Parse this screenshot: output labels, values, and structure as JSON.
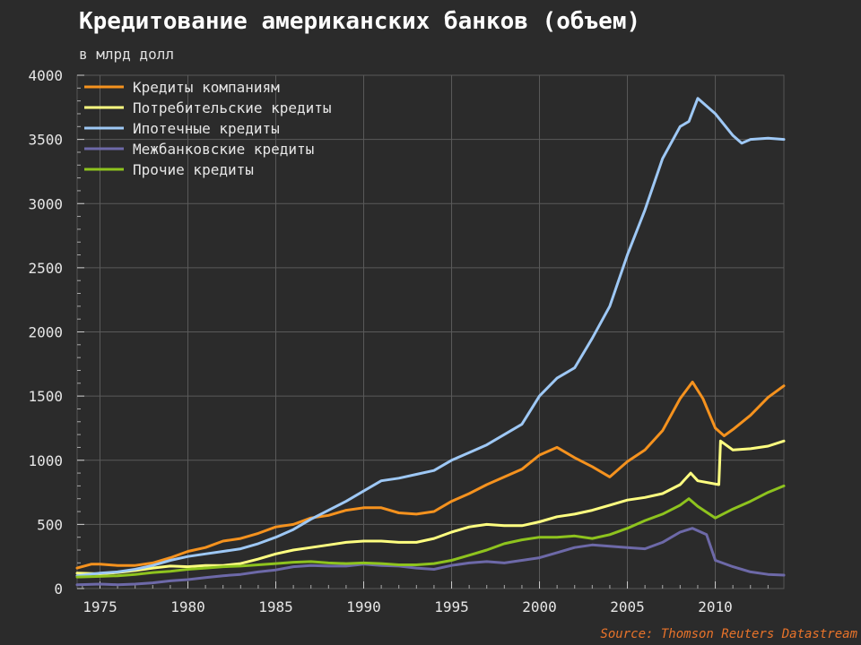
{
  "chart_data": {
    "type": "line",
    "title": "Кредитование американских банков (объем)",
    "subtitle": "в млрд долл",
    "source": "Source: Thomson Reuters Datastream",
    "xlim": [
      1973.7,
      2013.9
    ],
    "ylim": [
      0,
      4000
    ],
    "x_ticks": [
      1975,
      1980,
      1985,
      1990,
      1995,
      2000,
      2005,
      2010
    ],
    "y_ticks": [
      0,
      500,
      1000,
      1500,
      2000,
      2500,
      3000,
      3500,
      4000
    ],
    "grid": true,
    "legend_position": "top-left",
    "series": [
      {
        "name": "Кредиты компаниям",
        "color": "#f5921e",
        "x": [
          1973.7,
          1974.5,
          1975,
          1976,
          1977,
          1978,
          1979,
          1980,
          1981,
          1982,
          1983,
          1984,
          1985,
          1986,
          1987,
          1988,
          1989,
          1990,
          1991,
          1992,
          1993,
          1994,
          1995,
          1996,
          1997,
          1998,
          1999,
          2000,
          2001,
          2002,
          2003,
          2004,
          2005,
          2006,
          2007,
          2008,
          2008.7,
          2009.3,
          2010,
          2010.5,
          2011,
          2012,
          2013,
          2013.9
        ],
        "y": [
          160,
          190,
          190,
          180,
          180,
          200,
          240,
          290,
          320,
          370,
          390,
          430,
          480,
          500,
          550,
          570,
          610,
          630,
          630,
          590,
          580,
          600,
          680,
          740,
          810,
          870,
          930,
          1040,
          1100,
          1020,
          950,
          870,
          990,
          1080,
          1230,
          1480,
          1610,
          1480,
          1250,
          1190,
          1240,
          1350,
          1490,
          1580
        ]
      },
      {
        "name": "Потребительские кредиты",
        "color": "#ffff80",
        "x": [
          1973.7,
          1975,
          1976,
          1977,
          1978,
          1979,
          1980,
          1981,
          1982,
          1983,
          1984,
          1985,
          1986,
          1987,
          1988,
          1989,
          1990,
          1991,
          1992,
          1993,
          1994,
          1995,
          1996,
          1997,
          1998,
          1999,
          2000,
          2001,
          2002,
          2003,
          2004,
          2005,
          2006,
          2007,
          2008,
          2008.6,
          2009,
          2010.2,
          2010.3,
          2011,
          2012,
          2013,
          2013.9
        ],
        "y": [
          120,
          115,
          125,
          140,
          160,
          175,
          170,
          180,
          180,
          195,
          230,
          270,
          300,
          320,
          340,
          360,
          370,
          370,
          360,
          360,
          390,
          440,
          480,
          500,
          490,
          490,
          520,
          560,
          580,
          610,
          650,
          690,
          710,
          740,
          810,
          900,
          840,
          810,
          1150,
          1080,
          1090,
          1110,
          1150
        ]
      },
      {
        "name": "Ипотечные кредиты",
        "color": "#9ec8f5",
        "x": [
          1973.7,
          1975,
          1976,
          1977,
          1978,
          1979,
          1980,
          1981,
          1982,
          1983,
          1984,
          1985,
          1986,
          1987,
          1988,
          1989,
          1990,
          1991,
          1992,
          1993,
          1994,
          1995,
          1996,
          1997,
          1998,
          1999,
          2000,
          2001,
          2002,
          2003,
          2004,
          2005,
          2006,
          2007,
          2008,
          2008.5,
          2009,
          2009.5,
          2010,
          2011,
          2011.5,
          2012,
          2013,
          2013.9
        ],
        "y": [
          100,
          120,
          130,
          150,
          180,
          220,
          250,
          270,
          290,
          310,
          350,
          400,
          460,
          540,
          610,
          680,
          760,
          840,
          860,
          890,
          920,
          1000,
          1060,
          1120,
          1200,
          1280,
          1500,
          1640,
          1720,
          1950,
          2200,
          2600,
          2950,
          3350,
          3600,
          3640,
          3820,
          3760,
          3700,
          3530,
          3470,
          3500,
          3510,
          3500
        ]
      },
      {
        "name": "Межбанковские кредиты",
        "color": "#6d69a8",
        "x": [
          1973.7,
          1975,
          1976,
          1977,
          1978,
          1979,
          1980,
          1981,
          1982,
          1983,
          1984,
          1985,
          1986,
          1987,
          1988,
          1989,
          1990,
          1991,
          1992,
          1993,
          1994,
          1995,
          1996,
          1997,
          1998,
          1999,
          2000,
          2001,
          2002,
          2003,
          2004,
          2005,
          2006,
          2007,
          2008,
          2008.7,
          2009.5,
          2010,
          2011,
          2012,
          2013,
          2013.9
        ],
        "y": [
          30,
          35,
          30,
          35,
          45,
          60,
          70,
          85,
          100,
          110,
          130,
          145,
          170,
          180,
          175,
          175,
          190,
          180,
          175,
          160,
          150,
          180,
          200,
          210,
          200,
          220,
          240,
          280,
          320,
          340,
          330,
          320,
          310,
          360,
          440,
          470,
          420,
          220,
          170,
          130,
          110,
          105
        ]
      },
      {
        "name": "Прочие кредиты",
        "color": "#8ec31e",
        "x": [
          1973.7,
          1975,
          1976,
          1977,
          1978,
          1979,
          1980,
          1981,
          1982,
          1983,
          1984,
          1985,
          1986,
          1987,
          1988,
          1989,
          1990,
          1991,
          1992,
          1993,
          1994,
          1995,
          1996,
          1997,
          1998,
          1999,
          2000,
          2001,
          2002,
          2003,
          2004,
          2005,
          2006,
          2007,
          2008,
          2008.5,
          2009,
          2010,
          2011,
          2012,
          2013,
          2013.9
        ],
        "y": [
          90,
          95,
          100,
          110,
          125,
          135,
          150,
          160,
          170,
          175,
          185,
          195,
          205,
          210,
          200,
          195,
          200,
          195,
          185,
          185,
          195,
          220,
          260,
          300,
          350,
          380,
          400,
          400,
          410,
          390,
          420,
          470,
          530,
          580,
          650,
          700,
          640,
          550,
          620,
          680,
          750,
          800
        ]
      }
    ]
  }
}
